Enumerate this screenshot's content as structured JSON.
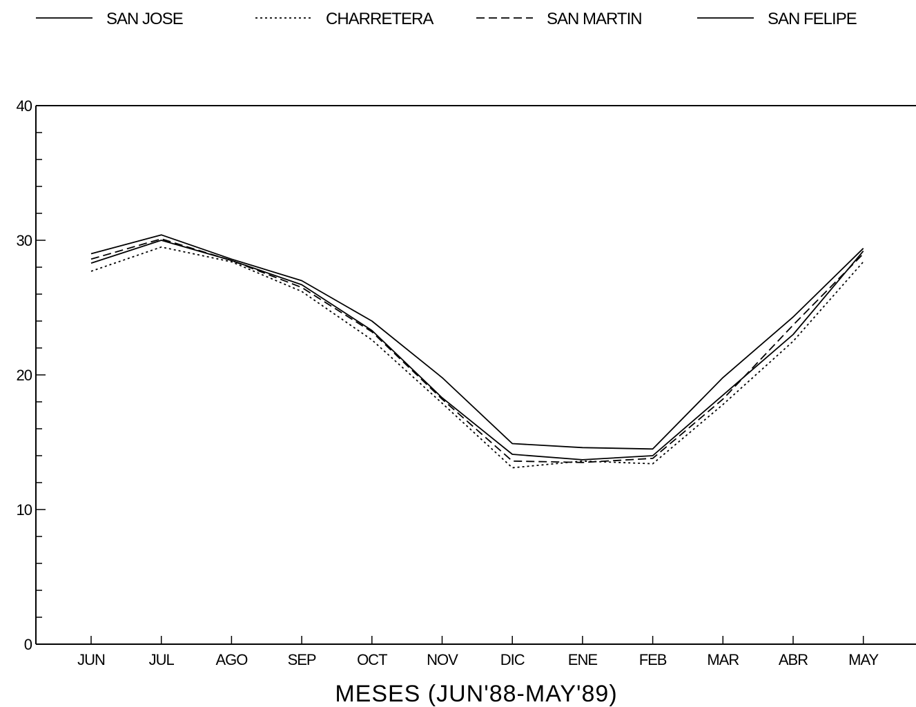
{
  "chart_data": {
    "type": "line",
    "title": "",
    "xlabel": "MESES (JUN'88-MAY'89)",
    "ylabel": "",
    "ylim": [
      0,
      40
    ],
    "yticks": [
      "0",
      "10",
      "20",
      "30",
      "40"
    ],
    "grid": false,
    "legend_position": "top",
    "categories": [
      "JUN",
      "JUL",
      "AGO",
      "SEP",
      "OCT",
      "NOV",
      "DIC",
      "ENE",
      "FEB",
      "MAR",
      "ABR",
      "MAY"
    ],
    "series": [
      {
        "name": "SAN JOSE",
        "style": "solid",
        "values": [
          28.3,
          30.0,
          28.5,
          26.7,
          23.3,
          18.3,
          14.1,
          13.7,
          14.0,
          18.5,
          23.0,
          29.2
        ]
      },
      {
        "name": "CHARRETERA",
        "style": "dotted",
        "values": [
          27.7,
          29.5,
          28.4,
          26.2,
          22.6,
          17.9,
          13.1,
          13.6,
          13.4,
          17.8,
          22.5,
          28.4
        ]
      },
      {
        "name": "SAN MARTIN",
        "style": "dashed",
        "values": [
          28.6,
          30.1,
          28.5,
          26.5,
          23.2,
          18.2,
          13.6,
          13.5,
          13.8,
          18.2,
          23.7,
          29.0
        ]
      },
      {
        "name": "SAN FELIPE",
        "style": "solid",
        "values": [
          29.0,
          30.4,
          28.6,
          27.0,
          24.0,
          19.8,
          14.9,
          14.6,
          14.5,
          19.8,
          24.3,
          29.4
        ]
      }
    ]
  }
}
